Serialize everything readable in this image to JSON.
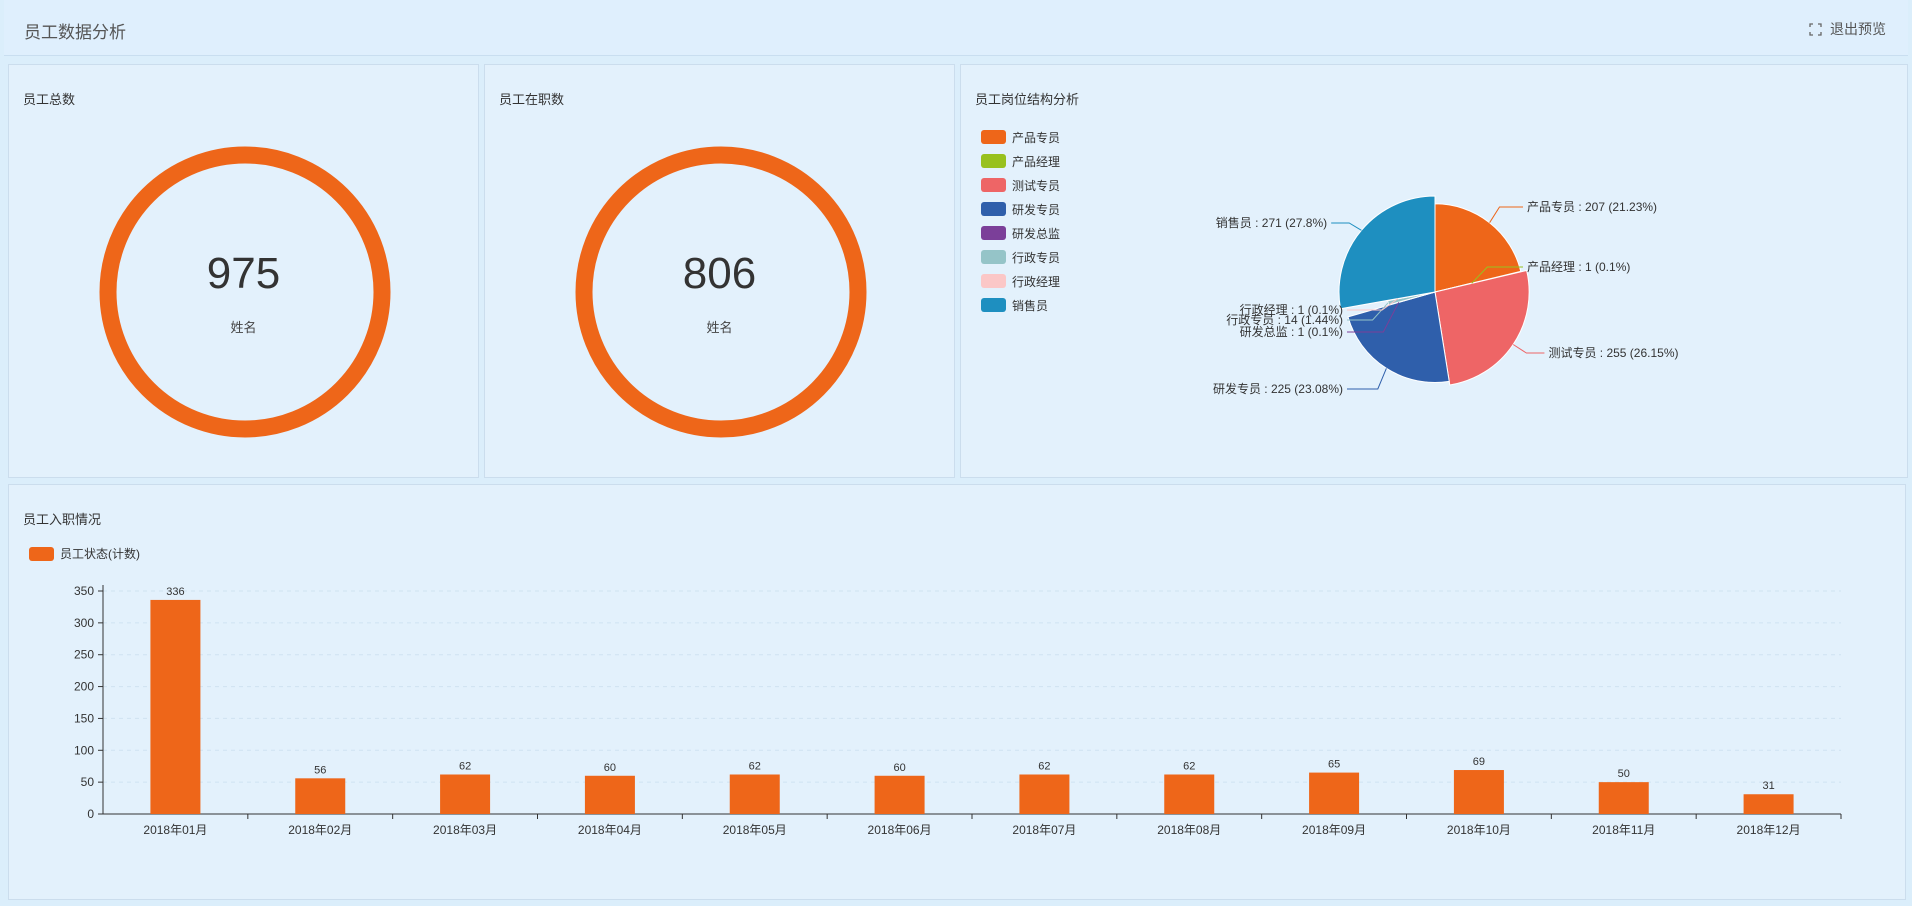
{
  "header": {
    "title": "员工数据分析",
    "exit_label": "退出预览"
  },
  "panels": {
    "total": {
      "title": "员工总数",
      "value": "975",
      "sub": "姓名",
      "color": "#ee6619"
    },
    "active": {
      "title": "员工在职数",
      "value": "806",
      "sub": "姓名",
      "color": "#ee6619"
    },
    "structure": {
      "title": "员工岗位结构分析"
    },
    "hiring": {
      "title": "员工入职情况"
    }
  },
  "chart_data": [
    {
      "type": "pie",
      "title": "员工岗位结构分析",
      "legend_position": "left",
      "slices": [
        {
          "name": "产品专员",
          "value": 207,
          "percent": "21.23%",
          "color": "#ee6619"
        },
        {
          "name": "产品经理",
          "value": 1,
          "percent": "0.1%",
          "color": "#98c11e"
        },
        {
          "name": "测试专员",
          "value": 255,
          "percent": "26.15%",
          "color": "#ee6566"
        },
        {
          "name": "研发专员",
          "value": 225,
          "percent": "23.08%",
          "color": "#2f5fab"
        },
        {
          "name": "研发总监",
          "value": 1,
          "percent": "0.1%",
          "color": "#7b3f99"
        },
        {
          "name": "行政专员",
          "value": 14,
          "percent": "1.44%",
          "color": "#95c4c8"
        },
        {
          "name": "行政经理",
          "value": 1,
          "percent": "0.1%",
          "color": "#fbc7c7"
        },
        {
          "name": "销售员",
          "value": 271,
          "percent": "27.8%",
          "color": "#1e8fc0"
        }
      ]
    },
    {
      "type": "bar",
      "title": "员工入职情况",
      "legend_position": "top-left",
      "categories": [
        "2018年01月",
        "2018年02月",
        "2018年03月",
        "2018年04月",
        "2018年05月",
        "2018年06月",
        "2018年07月",
        "2018年08月",
        "2018年09月",
        "2018年10月",
        "2018年11月",
        "2018年12月"
      ],
      "series": [
        {
          "name": "员工状态(计数)",
          "color": "#ee6619",
          "values": [
            336,
            56,
            62,
            60,
            62,
            60,
            62,
            62,
            65,
            69,
            50,
            31
          ]
        }
      ],
      "yticks": [
        0,
        50,
        100,
        150,
        200,
        250,
        300,
        350
      ],
      "ylim": [
        0,
        350
      ],
      "grid": true
    }
  ]
}
